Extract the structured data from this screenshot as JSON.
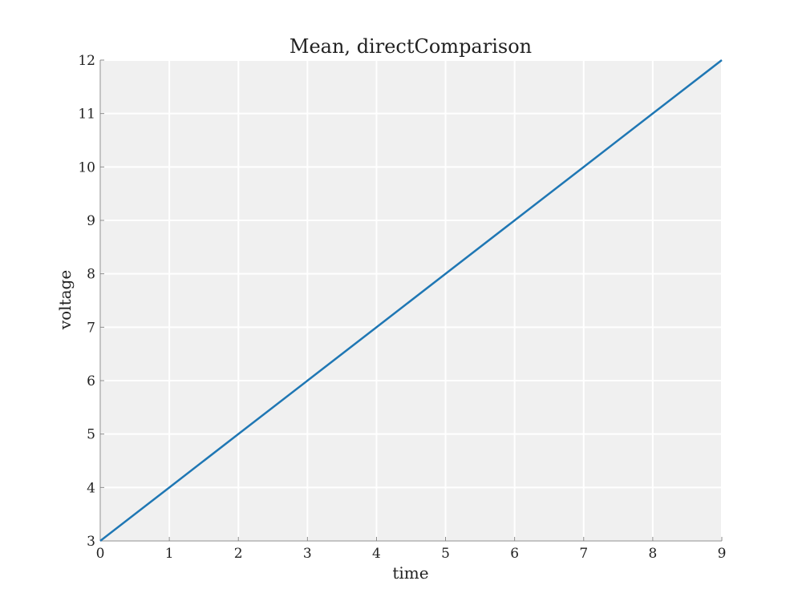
{
  "colors": {
    "plot_background": "#f0f0f0",
    "grid": "#ffffff",
    "axis": "#888888",
    "series": "#1f77b4"
  },
  "chart_data": {
    "type": "line",
    "title": "Mean, directComparison",
    "xlabel": "time",
    "ylabel": "voltage",
    "xlim": [
      0,
      9
    ],
    "ylim": [
      3,
      12
    ],
    "xticks": [
      "0",
      "1",
      "2",
      "3",
      "4",
      "5",
      "6",
      "7",
      "8",
      "9"
    ],
    "yticks": [
      "3",
      "4",
      "5",
      "6",
      "7",
      "8",
      "9",
      "10",
      "11",
      "12"
    ],
    "grid": true,
    "series": [
      {
        "x": [
          0,
          1,
          2,
          3,
          4,
          5,
          6,
          7,
          8,
          9
        ],
        "y": [
          3,
          4,
          5,
          6,
          7,
          8,
          9,
          10,
          11,
          12
        ]
      }
    ]
  }
}
